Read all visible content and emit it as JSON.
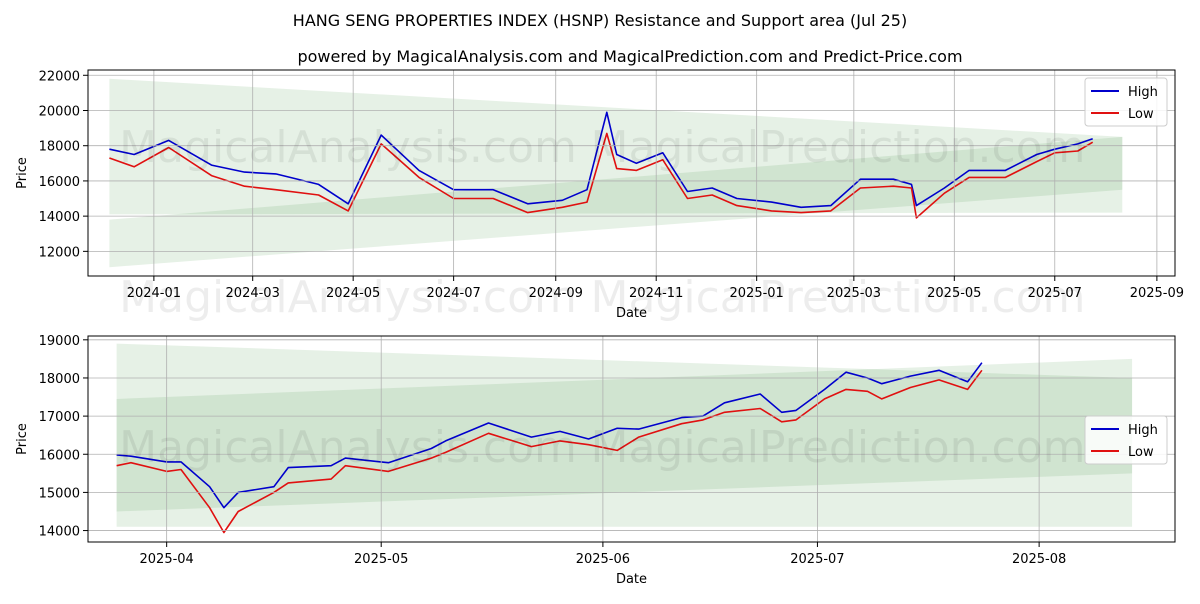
{
  "title": "HANG SENG PROPERTIES INDEX (HSNP) Resistance and Support area (Jul 25)",
  "subtitle": "powered by MagicalAnalysis.com and MagicalPrediction.com and Predict-Price.com",
  "watermark_left": "MagicalAnalysis.com",
  "watermark_right": "MagicalPrediction.com",
  "colors": {
    "high": "#0000cc",
    "low": "#e01010",
    "band_light": "#e4f1e2",
    "band_mid": "#cbe6c8",
    "grid": "#b0b0b0"
  },
  "chart_data": [
    {
      "type": "line",
      "xlabel": "Date",
      "ylabel": "Price",
      "ylim": [
        10600,
        22300
      ],
      "xlim": [
        "2023-11-22",
        "2025-09-12"
      ],
      "grid": true,
      "legend": "top-right",
      "x_ticks": [
        "2024-01",
        "2024-03",
        "2024-05",
        "2024-07",
        "2024-09",
        "2024-11",
        "2025-01",
        "2025-03",
        "2025-05",
        "2025-07",
        "2025-09"
      ],
      "y_ticks": [
        12000,
        14000,
        16000,
        18000,
        20000,
        22000
      ],
      "y_tick_labels": [
        "12000",
        "14000",
        "16000",
        "18000",
        "20000",
        "22000"
      ],
      "bands": [
        {
          "name": "resistance-outer",
          "start": "2023-12-05",
          "end": "2025-08-11",
          "lower": [
            14100,
            14200
          ],
          "upper": [
            21800,
            18500
          ]
        },
        {
          "name": "support-outer",
          "start": "2023-12-05",
          "end": "2025-08-11",
          "lower": [
            11100,
            15500
          ],
          "upper": [
            13800,
            18500
          ]
        }
      ],
      "series": [
        {
          "name": "High",
          "x": [
            "2023-12-05",
            "2023-12-20",
            "2024-01-10",
            "2024-02-05",
            "2024-02-25",
            "2024-03-15",
            "2024-04-10",
            "2024-04-28",
            "2024-05-18",
            "2024-06-10",
            "2024-07-01",
            "2024-07-25",
            "2024-08-15",
            "2024-09-05",
            "2024-09-20",
            "2024-10-02",
            "2024-10-08",
            "2024-10-20",
            "2024-11-05",
            "2024-11-20",
            "2024-12-05",
            "2024-12-20",
            "2025-01-10",
            "2025-01-28",
            "2025-02-15",
            "2025-03-05",
            "2025-03-25",
            "2025-04-05",
            "2025-04-08",
            "2025-04-25",
            "2025-05-10",
            "2025-06-01",
            "2025-06-20",
            "2025-07-01",
            "2025-07-15",
            "2025-07-24"
          ],
          "values": [
            17800,
            17500,
            18300,
            16900,
            16500,
            16400,
            15800,
            14700,
            18600,
            16600,
            15500,
            15500,
            14700,
            14900,
            15500,
            19900,
            17500,
            17000,
            17600,
            15400,
            15600,
            15000,
            14800,
            14500,
            14600,
            16100,
            16100,
            15800,
            14600,
            15600,
            16600,
            16600,
            17500,
            17800,
            18100,
            18400
          ]
        },
        {
          "name": "Low",
          "x": [
            "2023-12-05",
            "2023-12-20",
            "2024-01-10",
            "2024-02-05",
            "2024-02-25",
            "2024-03-15",
            "2024-04-10",
            "2024-04-28",
            "2024-05-18",
            "2024-06-10",
            "2024-07-01",
            "2024-07-25",
            "2024-08-15",
            "2024-09-05",
            "2024-09-20",
            "2024-10-02",
            "2024-10-08",
            "2024-10-20",
            "2024-11-05",
            "2024-11-20",
            "2024-12-05",
            "2024-12-20",
            "2025-01-10",
            "2025-01-28",
            "2025-02-15",
            "2025-03-05",
            "2025-03-25",
            "2025-04-05",
            "2025-04-08",
            "2025-04-25",
            "2025-05-10",
            "2025-06-01",
            "2025-06-20",
            "2025-07-01",
            "2025-07-15",
            "2025-07-24"
          ],
          "values": [
            17300,
            16800,
            17900,
            16300,
            15700,
            15500,
            15200,
            14300,
            18100,
            16200,
            15000,
            15000,
            14200,
            14500,
            14800,
            18700,
            16700,
            16600,
            17200,
            15000,
            15200,
            14600,
            14300,
            14200,
            14300,
            15600,
            15700,
            15600,
            13900,
            15300,
            16200,
            16200,
            17100,
            17600,
            17700,
            18200
          ]
        }
      ]
    },
    {
      "type": "line",
      "xlabel": "Date",
      "ylabel": "Price",
      "ylim": [
        13700,
        19100
      ],
      "xlim": [
        "2025-03-21",
        "2025-08-20"
      ],
      "grid": true,
      "legend": "center-right",
      "x_ticks": [
        "2025-04",
        "2025-05",
        "2025-06",
        "2025-07",
        "2025-08"
      ],
      "y_ticks": [
        14000,
        15000,
        16000,
        17000,
        18000,
        19000
      ],
      "y_tick_labels": [
        "14000",
        "15000",
        "16000",
        "17000",
        "18000",
        "19000"
      ],
      "bands": [
        {
          "name": "resistance-outer",
          "start": "2025-03-25",
          "end": "2025-08-14",
          "lower": [
            14100,
            14100
          ],
          "upper": [
            18900,
            18000
          ]
        },
        {
          "name": "support-outer",
          "start": "2025-03-25",
          "end": "2025-08-14",
          "lower": [
            14500,
            15500
          ],
          "upper": [
            17450,
            18500
          ]
        }
      ],
      "series": [
        {
          "name": "High",
          "x": [
            "2025-03-25",
            "2025-03-27",
            "2025-04-01",
            "2025-04-03",
            "2025-04-07",
            "2025-04-09",
            "2025-04-11",
            "2025-04-16",
            "2025-04-18",
            "2025-04-24",
            "2025-04-26",
            "2025-05-02",
            "2025-05-08",
            "2025-05-10",
            "2025-05-16",
            "2025-05-22",
            "2025-05-26",
            "2025-05-30",
            "2025-06-03",
            "2025-06-06",
            "2025-06-12",
            "2025-06-15",
            "2025-06-18",
            "2025-06-23",
            "2025-06-26",
            "2025-06-28",
            "2025-07-02",
            "2025-07-05",
            "2025-07-08",
            "2025-07-10",
            "2025-07-14",
            "2025-07-18",
            "2025-07-22",
            "2025-07-24"
          ],
          "values": [
            15980,
            15950,
            15800,
            15800,
            15150,
            14600,
            15000,
            15150,
            15650,
            15700,
            15900,
            15780,
            16150,
            16350,
            16820,
            16450,
            16600,
            16400,
            16680,
            16660,
            16960,
            17000,
            17350,
            17580,
            17100,
            17150,
            17700,
            18150,
            18000,
            17850,
            18050,
            18200,
            17900,
            18400
          ]
        },
        {
          "name": "Low",
          "x": [
            "2025-03-25",
            "2025-03-27",
            "2025-04-01",
            "2025-04-03",
            "2025-04-07",
            "2025-04-09",
            "2025-04-11",
            "2025-04-16",
            "2025-04-18",
            "2025-04-24",
            "2025-04-26",
            "2025-05-02",
            "2025-05-08",
            "2025-05-10",
            "2025-05-16",
            "2025-05-22",
            "2025-05-26",
            "2025-05-30",
            "2025-06-03",
            "2025-06-06",
            "2025-06-12",
            "2025-06-15",
            "2025-06-18",
            "2025-06-23",
            "2025-06-26",
            "2025-06-28",
            "2025-07-02",
            "2025-07-05",
            "2025-07-08",
            "2025-07-10",
            "2025-07-14",
            "2025-07-18",
            "2025-07-22",
            "2025-07-24"
          ],
          "values": [
            15700,
            15780,
            15550,
            15600,
            14600,
            13950,
            14500,
            15000,
            15250,
            15350,
            15700,
            15550,
            15900,
            16050,
            16550,
            16200,
            16350,
            16250,
            16100,
            16450,
            16800,
            16900,
            17100,
            17200,
            16850,
            16900,
            17450,
            17700,
            17650,
            17450,
            17750,
            17950,
            17700,
            18200
          ]
        }
      ]
    }
  ]
}
